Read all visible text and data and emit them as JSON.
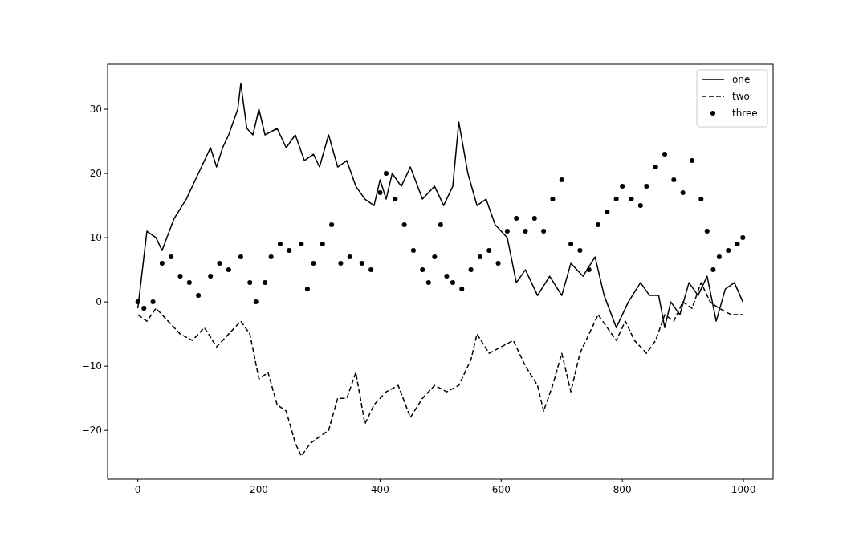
{
  "chart_data": {
    "type": "line",
    "xlim": [
      -49.95,
      1048.95
    ],
    "ylim": [
      -27.6,
      37
    ],
    "xticks": [
      0,
      200,
      400,
      600,
      800,
      1000
    ],
    "yticks": [
      {
        "value": -20,
        "label": "−20"
      },
      {
        "value": -10,
        "label": "−10"
      },
      0,
      10,
      20,
      30
    ],
    "grid": false,
    "legend": "top right",
    "series": [
      {
        "name": "one",
        "type": "line",
        "line_style": "solid",
        "color": "#000000",
        "x": [
          0,
          15,
          30,
          40,
          60,
          80,
          100,
          120,
          130,
          140,
          150,
          165,
          170,
          180,
          190,
          200,
          210,
          230,
          245,
          260,
          275,
          290,
          300,
          315,
          330,
          345,
          360,
          375,
          390,
          400,
          410,
          420,
          435,
          450,
          470,
          490,
          505,
          520,
          530,
          545,
          560,
          575,
          590,
          610,
          625,
          640,
          660,
          680,
          700,
          715,
          735,
          755,
          770,
          790,
          810,
          830,
          845,
          860,
          870,
          880,
          895,
          910,
          925,
          940,
          955,
          970,
          985,
          999
        ],
        "values": [
          -1,
          11,
          10,
          8,
          13,
          16,
          20,
          24,
          21,
          24,
          26,
          30,
          34,
          27,
          26,
          30,
          26,
          27,
          24,
          26,
          22,
          23,
          21,
          26,
          21,
          22,
          18,
          16,
          15,
          19,
          16,
          20,
          18,
          21,
          16,
          18,
          15,
          18,
          28,
          20,
          15,
          16,
          12,
          10,
          3,
          5,
          1,
          4,
          1,
          6,
          4,
          7,
          1,
          -4,
          0,
          3,
          1,
          1,
          -4,
          0,
          -2,
          3,
          1,
          4,
          -3,
          2,
          3,
          0
        ]
      },
      {
        "name": "two",
        "type": "line",
        "line_style": "dashed",
        "color": "#000000",
        "x": [
          0,
          15,
          30,
          50,
          70,
          90,
          110,
          130,
          150,
          170,
          185,
          200,
          215,
          230,
          245,
          260,
          270,
          285,
          300,
          315,
          330,
          345,
          360,
          375,
          390,
          410,
          430,
          450,
          470,
          490,
          510,
          530,
          550,
          560,
          580,
          600,
          620,
          640,
          660,
          670,
          685,
          700,
          715,
          730,
          745,
          760,
          775,
          790,
          805,
          820,
          840,
          855,
          870,
          885,
          900,
          915,
          930,
          945,
          960,
          980,
          999
        ],
        "values": [
          -2,
          -3,
          -1,
          -3,
          -5,
          -6,
          -4,
          -7,
          -5,
          -3,
          -5,
          -12,
          -11,
          -16,
          -17,
          -22,
          -24,
          -22,
          -21,
          -20,
          -15,
          -15,
          -11,
          -19,
          -16,
          -14,
          -13,
          -18,
          -15,
          -13,
          -14,
          -13,
          -9,
          -5,
          -8,
          -7,
          -6,
          -10,
          -13,
          -17,
          -13,
          -8,
          -14,
          -8,
          -5,
          -2,
          -4,
          -6,
          -3,
          -6,
          -8,
          -6,
          -2,
          -3,
          0,
          -1,
          3,
          0,
          -1,
          -2,
          -2
        ]
      },
      {
        "name": "three",
        "type": "scatter",
        "marker": "circle",
        "color": "#000000",
        "x": [
          0,
          10,
          25,
          40,
          55,
          70,
          85,
          100,
          120,
          135,
          150,
          170,
          185,
          195,
          210,
          220,
          235,
          250,
          270,
          280,
          290,
          305,
          320,
          335,
          350,
          370,
          385,
          400,
          410,
          425,
          440,
          455,
          470,
          480,
          490,
          500,
          510,
          520,
          535,
          550,
          565,
          580,
          595,
          610,
          625,
          640,
          655,
          670,
          685,
          700,
          715,
          730,
          745,
          760,
          775,
          790,
          800,
          815,
          830,
          840,
          855,
          870,
          885,
          900,
          915,
          930,
          940,
          950,
          960,
          975,
          990,
          999
        ],
        "values": [
          0,
          -1,
          0,
          6,
          7,
          4,
          3,
          1,
          4,
          6,
          5,
          7,
          3,
          0,
          3,
          7,
          9,
          8,
          9,
          2,
          6,
          9,
          12,
          6,
          7,
          6,
          5,
          17,
          20,
          16,
          12,
          8,
          5,
          3,
          7,
          12,
          4,
          3,
          2,
          5,
          7,
          8,
          6,
          11,
          13,
          11,
          13,
          11,
          16,
          19,
          9,
          8,
          5,
          12,
          14,
          16,
          18,
          16,
          15,
          18,
          21,
          23,
          19,
          17,
          22,
          16,
          11,
          5,
          7,
          8,
          9,
          10
        ]
      }
    ]
  }
}
